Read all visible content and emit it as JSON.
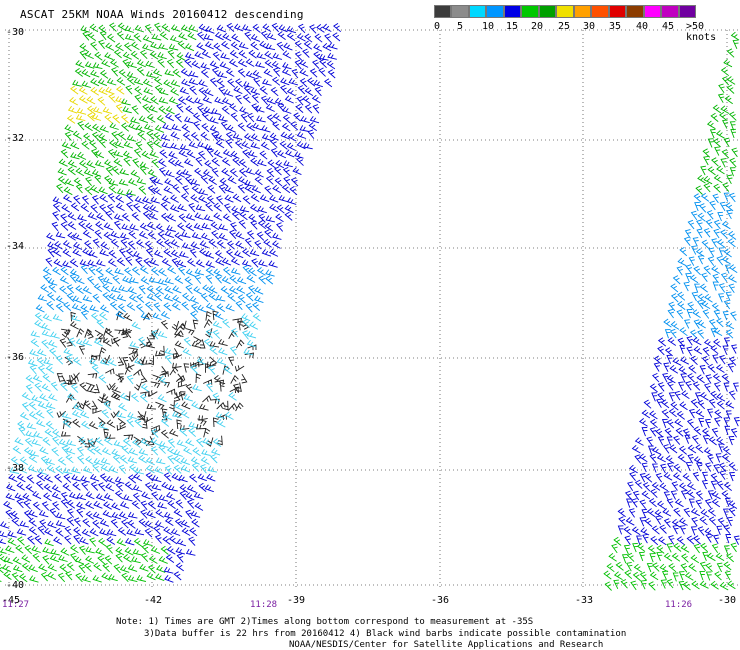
{
  "header": {
    "title": "ASCAT 25KM NOAA Winds 20160412 descending"
  },
  "legend": {
    "colors": [
      "#3c3c3c",
      "#8c8c8c",
      "#00d8ff",
      "#0096ff",
      "#0000e6",
      "#00c800",
      "#00a000",
      "#f0e000",
      "#ffa000",
      "#ff5000",
      "#e00000",
      "#8c3c00",
      "#ff00ff",
      "#c000c0",
      "#7000a0"
    ],
    "labels": [
      "0",
      "5",
      "10",
      "15",
      "20",
      "25",
      "30",
      "35",
      "40",
      "45",
      ">50 knots"
    ]
  },
  "map": {
    "lat_labels": [
      "-30",
      "-32",
      "-34",
      "-36",
      "-38",
      "-40"
    ],
    "lon_labels": [
      "-45",
      "-42",
      "-39",
      "-36",
      "-33",
      "-30"
    ],
    "time_labels": [
      "11:27",
      "11:28",
      "11:26"
    ]
  },
  "footer": {
    "line1": "Note: 1) Times are GMT 2)Times along bottom correspond to measurement at -35S",
    "line2": "3)Data buffer is 22 hrs from 20160412 4) Black wind barbs indicate possible contamination",
    "line3": "NOAA/NESDIS/Center for Satellite Applications and Research"
  }
}
